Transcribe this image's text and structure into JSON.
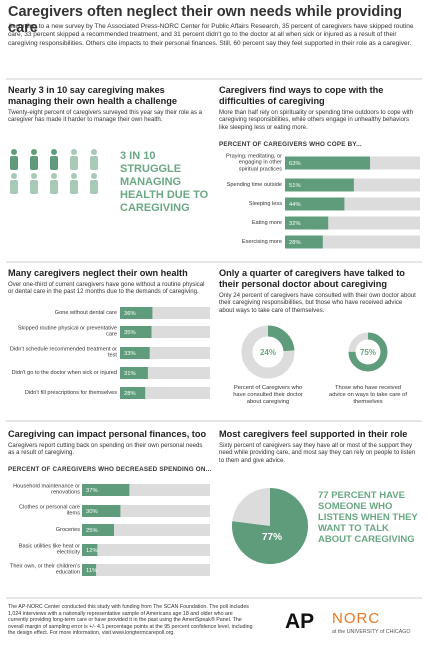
{
  "title": "Caregivers often neglect their own needs while providing care",
  "intro": "According to a new survey by The Associated Press-NORC Center for Public Affairs Research, 35 percent of caregivers have skipped routine care, 33 percent skipped a recommended treatment, and 31 percent didn't go to the doctor at all when sick or injured as a result of their caregiving responsibilities. Others cite impacts to their personal finances. Still, 60 percent say they feel supported in their role as a caregiver.",
  "health_challenge": {
    "heading": "Nearly 3 in 10 say caregiving makes managing their own health a challenge",
    "body": "Twenty-eight percent of caregivers surveyed this year say their role as a caregiver has made it harder to manage their own health.",
    "callout": "3 IN 10 STRUGGLE MANAGING HEALTH DUE TO CAREGIVING"
  },
  "coping": {
    "heading": "Caregivers find ways to cope with the difficulties of caregiving",
    "body": "More than half rely on spirituality or spending time outdoors to cope with caregiving responsibilities, while others engage in unhealthy behaviors like sleeping less or eating more.",
    "chart": {
      "type": "bar",
      "title": "PERCENT OF CAREGIVERS WHO COPE BY...",
      "categories": [
        "Praying, meditating, or engaging in other spiritual practices",
        "Spending time outside",
        "Sleeping less",
        "Eating more",
        "Exercising more"
      ],
      "values": [
        63,
        51,
        44,
        32,
        28
      ],
      "value_labels": [
        "63%",
        "51%",
        "44%",
        "32%",
        "28%"
      ],
      "xlim": [
        0,
        100
      ],
      "color": "#5e9c7c"
    }
  },
  "neglect": {
    "heading": "Many caregivers neglect their own health",
    "body": "Over one-third of current caregivers have gone without a routine physical or dental care in the past 12 months due to the demands of caregiving.",
    "chart": {
      "type": "bar",
      "categories": [
        "Gone without dental care",
        "Skipped routine physical or preventative care",
        "Didn't schedule recommended treatment or test",
        "Didn't go to the doctor when sick or injured",
        "Didn't fill prescriptions for themselves"
      ],
      "values": [
        36,
        35,
        33,
        31,
        28
      ],
      "value_labels": [
        "36%",
        "35%",
        "33%",
        "31%",
        "28%"
      ],
      "xlim": [
        0,
        100
      ],
      "color": "#5e9c7c"
    }
  },
  "doctor": {
    "heading": "Only a quarter of caregivers have talked to their personal doctor about caregiving",
    "body": "Only 24 percent of caregivers have consulted with their own doctor about their caregiving responsibilities, but those who have received advice about ways to take care of themselves.",
    "rings": [
      {
        "value": 24,
        "value_label": "24%",
        "caption": "Percent of Caregivers who have consulted their doctor about caregiving"
      },
      {
        "value": 75,
        "value_label": "75%",
        "caption": "Those who have received advice on ways to take care of themselves"
      }
    ],
    "range": [
      0,
      100
    ]
  },
  "finances": {
    "heading": "Caregiving can impact personal finances, too",
    "body": "Caregivers report cutting back on spending on their own personal needs as a result of caregiving.",
    "chart": {
      "type": "bar",
      "title": "PERCENT OF CAREGIVERS WHO DECREASED SPENDING ON...",
      "categories": [
        "Household maintenance or renovations",
        "Clothes or personal care items",
        "Groceries",
        "Basic utilities like heat or electricity",
        "Their own, or their children's education"
      ],
      "values": [
        37,
        30,
        25,
        12,
        11
      ],
      "value_labels": [
        "37%",
        "30%",
        "25%",
        "12%",
        "11%"
      ],
      "xlim": [
        0,
        100
      ],
      "color": "#5e9c7c"
    }
  },
  "support": {
    "heading": "Most caregivers feel supported in their role",
    "body": "Sixty percent of caregivers say they have all or most of the support they need while providing care, and most say they can rely on people to listen to them and give advice.",
    "pie": {
      "value": 77,
      "value_label": "77%",
      "range": [
        0,
        100
      ]
    },
    "callout": "77 PERCENT HAVE SOMEONE WHO LISTENS WHEN THEY WANT TO TALK ABOUT CAREGIVING"
  },
  "footer": {
    "text": "The AP-NORC Center conducted this study with funding from The SCAN Foundation. The poll includes 1,024 interviews with a nationally representative sample of Americans age 18 and older who are currently providing long-term care or have provided it in the past using the AmeriSpeak® Panel. The overall margin of sampling error is +/- 4.1 percentage points at the 95 percent confidence level, including the design effect. For more information, visit www.longtermcarepoll.org.",
    "ap": "AP",
    "norc": "NORC",
    "university": "at the UNIVERSITY of CHICAGO"
  }
}
